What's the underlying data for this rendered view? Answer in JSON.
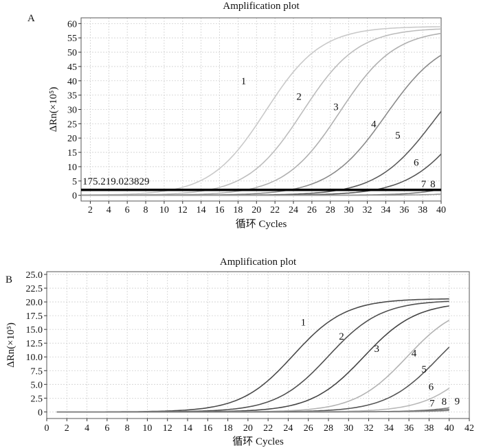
{
  "chart_data": [
    {
      "panel_label": "A",
      "type": "line",
      "title": "Amplification plot",
      "xlabel": "循环 Cycles",
      "ylabel": "ΔRn(×10⁵)",
      "xlim": [
        1,
        40
      ],
      "ylim": [
        -2,
        62
      ],
      "xticks": [
        2,
        4,
        6,
        8,
        10,
        12,
        14,
        16,
        18,
        20,
        22,
        24,
        26,
        28,
        30,
        32,
        34,
        36,
        38,
        40
      ],
      "yticks": [
        0,
        5,
        10,
        15,
        20,
        25,
        30,
        35,
        40,
        45,
        50,
        55,
        60
      ],
      "grid": true,
      "threshold": {
        "value": 1.9,
        "label": "175.219.023829"
      },
      "series": [
        {
          "name": "1",
          "params": {
            "plateau": 59,
            "midpoint": 21,
            "slope": 3.0
          },
          "color": "#c9c9c9",
          "label_at": [
            18.6,
            40
          ]
        },
        {
          "name": "2",
          "params": {
            "plateau": 58.5,
            "midpoint": 25,
            "slope": 3.0
          },
          "color": "#bdbdbd",
          "label_at": [
            24.6,
            34.5
          ]
        },
        {
          "name": "3",
          "params": {
            "plateau": 58,
            "midpoint": 29,
            "slope": 3.0
          },
          "color": "#b0b0b0",
          "label_at": [
            28.6,
            31
          ]
        },
        {
          "name": "4",
          "params": {
            "plateau": 56,
            "midpoint": 34,
            "slope": 3.1
          },
          "color": "#8a8a8a",
          "label_at": [
            32.7,
            25
          ]
        },
        {
          "name": "5",
          "params": {
            "plateau": 52,
            "midpoint": 39.2,
            "slope": 3.1
          },
          "color": "#5a5a5a",
          "label_at": [
            35.3,
            21
          ]
        },
        {
          "name": "6",
          "params": {
            "plateau": 50,
            "midpoint": 42.8,
            "slope": 3.1
          },
          "color": "#555555",
          "label_at": [
            37.3,
            11.5
          ]
        },
        {
          "name": "7",
          "params": {
            "plateau": 40,
            "midpoint": 48,
            "slope": 2.8
          },
          "color": "#777777",
          "label_at": [
            38.1,
            4
          ]
        },
        {
          "name": "8",
          "params": {
            "plateau": 30,
            "midpoint": 52,
            "slope": 2.8
          },
          "color": "#999999",
          "label_at": [
            39.1,
            4
          ]
        }
      ]
    },
    {
      "panel_label": "B",
      "type": "line",
      "title": "Amplification plot",
      "xlabel": "循环 Cycles",
      "ylabel": "ΔRn(×10⁵)",
      "xlim": [
        0,
        42
      ],
      "ylim": [
        -1.2,
        25.5
      ],
      "xticks": [
        0,
        2,
        4,
        6,
        8,
        10,
        12,
        14,
        16,
        18,
        20,
        22,
        24,
        26,
        28,
        30,
        32,
        34,
        36,
        38,
        40,
        42
      ],
      "yticks": [
        0,
        2.5,
        5.0,
        7.5,
        10.0,
        12.5,
        15.0,
        17.5,
        20.0,
        22.5,
        25.0
      ],
      "ytick_labels": [
        "0",
        "2.5",
        "5.0",
        "7.5",
        "10.0",
        "12.5",
        "15.0",
        "17.5",
        "20.0",
        "22.5",
        "25.0"
      ],
      "grid": true,
      "series": [
        {
          "name": "1",
          "params": {
            "plateau": 20.6,
            "midpoint": 24.5,
            "slope": 2.6
          },
          "color": "#4a4a4a",
          "label_at": [
            25.5,
            16.3
          ]
        },
        {
          "name": "2",
          "params": {
            "plateau": 20.3,
            "midpoint": 28,
            "slope": 2.6
          },
          "color": "#4f4f4f",
          "label_at": [
            29.3,
            13.8
          ]
        },
        {
          "name": "3",
          "params": {
            "plateau": 20.0,
            "midpoint": 31.5,
            "slope": 2.6
          },
          "color": "#444444",
          "label_at": [
            32.8,
            11.5
          ]
        },
        {
          "name": "4",
          "params": {
            "plateau": 20.0,
            "midpoint": 35.8,
            "slope": 2.6
          },
          "color": "#b3b3b3",
          "label_at": [
            36.5,
            10.7
          ]
        },
        {
          "name": "5",
          "params": {
            "plateau": 19.5,
            "midpoint": 38.9,
            "slope": 2.6
          },
          "color": "#555555",
          "label_at": [
            37.5,
            7.8
          ]
        },
        {
          "name": "6",
          "params": {
            "plateau": 18,
            "midpoint": 43,
            "slope": 2.6
          },
          "color": "#b8b8b8",
          "label_at": [
            38.2,
            4.6
          ]
        },
        {
          "name": "7",
          "params": {
            "plateau": 14,
            "midpoint": 47.5,
            "slope": 2.6
          },
          "color": "#777777",
          "label_at": [
            38.3,
            1.6
          ]
        },
        {
          "name": "8",
          "params": {
            "plateau": 12,
            "midpoint": 48.5,
            "slope": 2.6
          },
          "color": "#666666",
          "label_at": [
            39.5,
            1.9
          ]
        },
        {
          "name": "9",
          "params": {
            "plateau": 10,
            "midpoint": 49.5,
            "slope": 2.6
          },
          "color": "#888888",
          "label_at": [
            40.8,
            2.0
          ]
        }
      ]
    }
  ]
}
